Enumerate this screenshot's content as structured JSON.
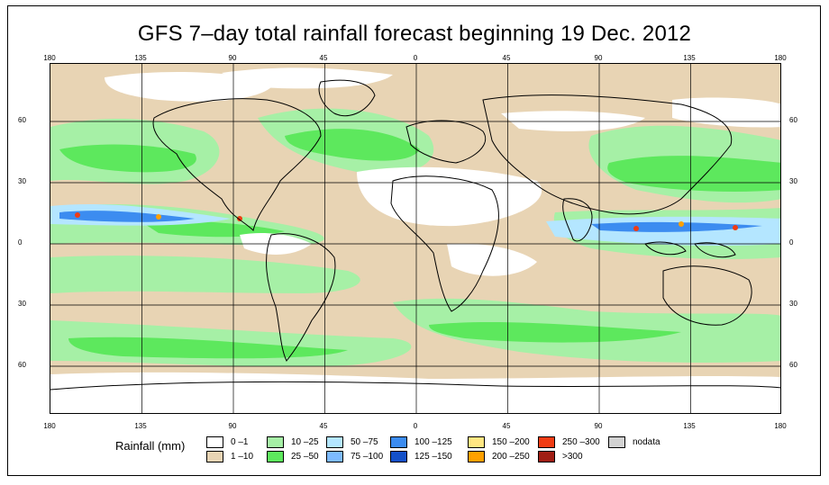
{
  "title": "GFS 7–day total rainfall forecast beginning 19 Dec. 2012",
  "axes": {
    "longitude_top": [
      "180",
      "135",
      "90",
      "45",
      "0",
      "45",
      "90",
      "135",
      "180"
    ],
    "longitude_bottom": [
      "180",
      "135",
      "90",
      "45",
      "0",
      "45",
      "90",
      "135",
      "180"
    ],
    "latitude_left": [
      "60",
      "30",
      "0",
      "30",
      "60"
    ],
    "latitude_right": [
      "60",
      "30",
      "0",
      "30",
      "60"
    ]
  },
  "legend": {
    "title": "Rainfall (mm)",
    "items": [
      {
        "label": "0 –1",
        "color": "#ffffff"
      },
      {
        "label": "1 –10",
        "color": "#e8d4b4"
      },
      {
        "label": "10 –25",
        "color": "#a6f0a6"
      },
      {
        "label": "25 –50",
        "color": "#5de85d"
      },
      {
        "label": "50 –75",
        "color": "#b4e6ff"
      },
      {
        "label": "75 –100",
        "color": "#7dbaff"
      },
      {
        "label": "100 –125",
        "color": "#3c8cf0"
      },
      {
        "label": "125 –150",
        "color": "#1450c8"
      },
      {
        "label": "150 –200",
        "color": "#ffe682"
      },
      {
        "label": "200 –250",
        "color": "#ffa000"
      },
      {
        "label": "250 –300",
        "color": "#f03c14"
      },
      {
        "label": ">300",
        "color": "#a01e14"
      },
      {
        "label": "nodata",
        "color": "#d2d2d2"
      }
    ]
  }
}
